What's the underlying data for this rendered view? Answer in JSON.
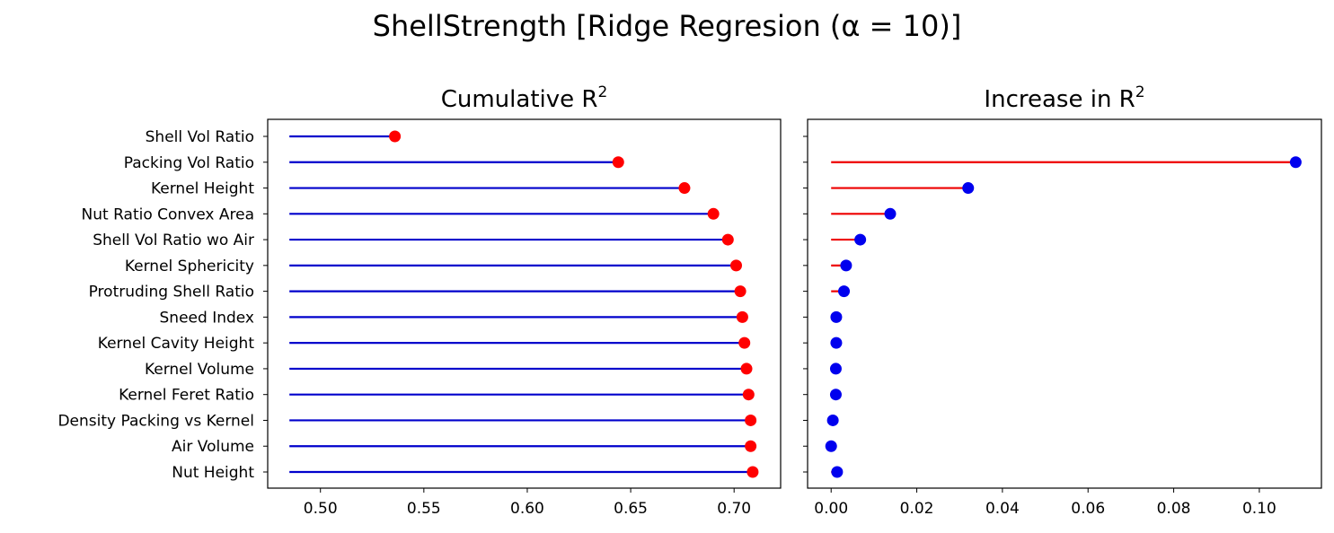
{
  "suptitle": "ShellStrength [Ridge Regresion (α = 10)]",
  "chart_data": [
    {
      "type": "lollipop",
      "title": "Cumulative R²",
      "title_base": "Cumulative R",
      "title_sup": "2",
      "categories": [
        "Shell Vol Ratio",
        "Packing Vol Ratio",
        "Kernel Height",
        "Nut Ratio Convex Area",
        "Shell Vol Ratio wo Air",
        "Kernel Sphericity",
        "Protruding Shell Ratio",
        "Sneed Index",
        "Kernel Cavity Height",
        "Kernel Volume",
        "Kernel Feret Ratio",
        "Density Packing vs Kernel",
        "Air Volume",
        "Nut Height"
      ],
      "baseline": 0.485,
      "values": [
        0.536,
        0.644,
        0.676,
        0.69,
        0.697,
        0.701,
        0.703,
        0.704,
        0.705,
        0.706,
        0.707,
        0.708,
        0.708,
        0.709
      ],
      "xlim": [
        0.4745,
        0.7225
      ],
      "xticks": [
        0.5,
        0.55,
        0.6,
        0.65,
        0.7
      ],
      "xtick_labels": [
        "0.50",
        "0.55",
        "0.60",
        "0.65",
        "0.70"
      ],
      "line_color": "#0000cc",
      "marker_color": "#ff0000"
    },
    {
      "type": "lollipop",
      "title": "Increase in R²",
      "title_base": "Increase in R",
      "title_sup": "2",
      "categories": [
        "Shell Vol Ratio",
        "Packing Vol Ratio",
        "Kernel Height",
        "Nut Ratio Convex Area",
        "Shell Vol Ratio wo Air",
        "Kernel Sphericity",
        "Protruding Shell Ratio",
        "Sneed Index",
        "Kernel Cavity Height",
        "Kernel Volume",
        "Kernel Feret Ratio",
        "Density Packing vs Kernel",
        "Air Volume",
        "Nut Height"
      ],
      "show_first": false,
      "baseline": 0,
      "values": [
        null,
        0.1085,
        0.032,
        0.0138,
        0.0068,
        0.0035,
        0.003,
        0.0012,
        0.0012,
        0.0011,
        0.0011,
        0.0004,
        0.0,
        0.0014
      ],
      "xlim": [
        -0.0055,
        0.1145
      ],
      "xticks": [
        0.0,
        0.02,
        0.04,
        0.06,
        0.08,
        0.1
      ],
      "xtick_labels": [
        "0.00",
        "0.02",
        "0.04",
        "0.06",
        "0.08",
        "0.10"
      ],
      "line_color": "#ee0000",
      "marker_color": "#0000ee"
    }
  ]
}
